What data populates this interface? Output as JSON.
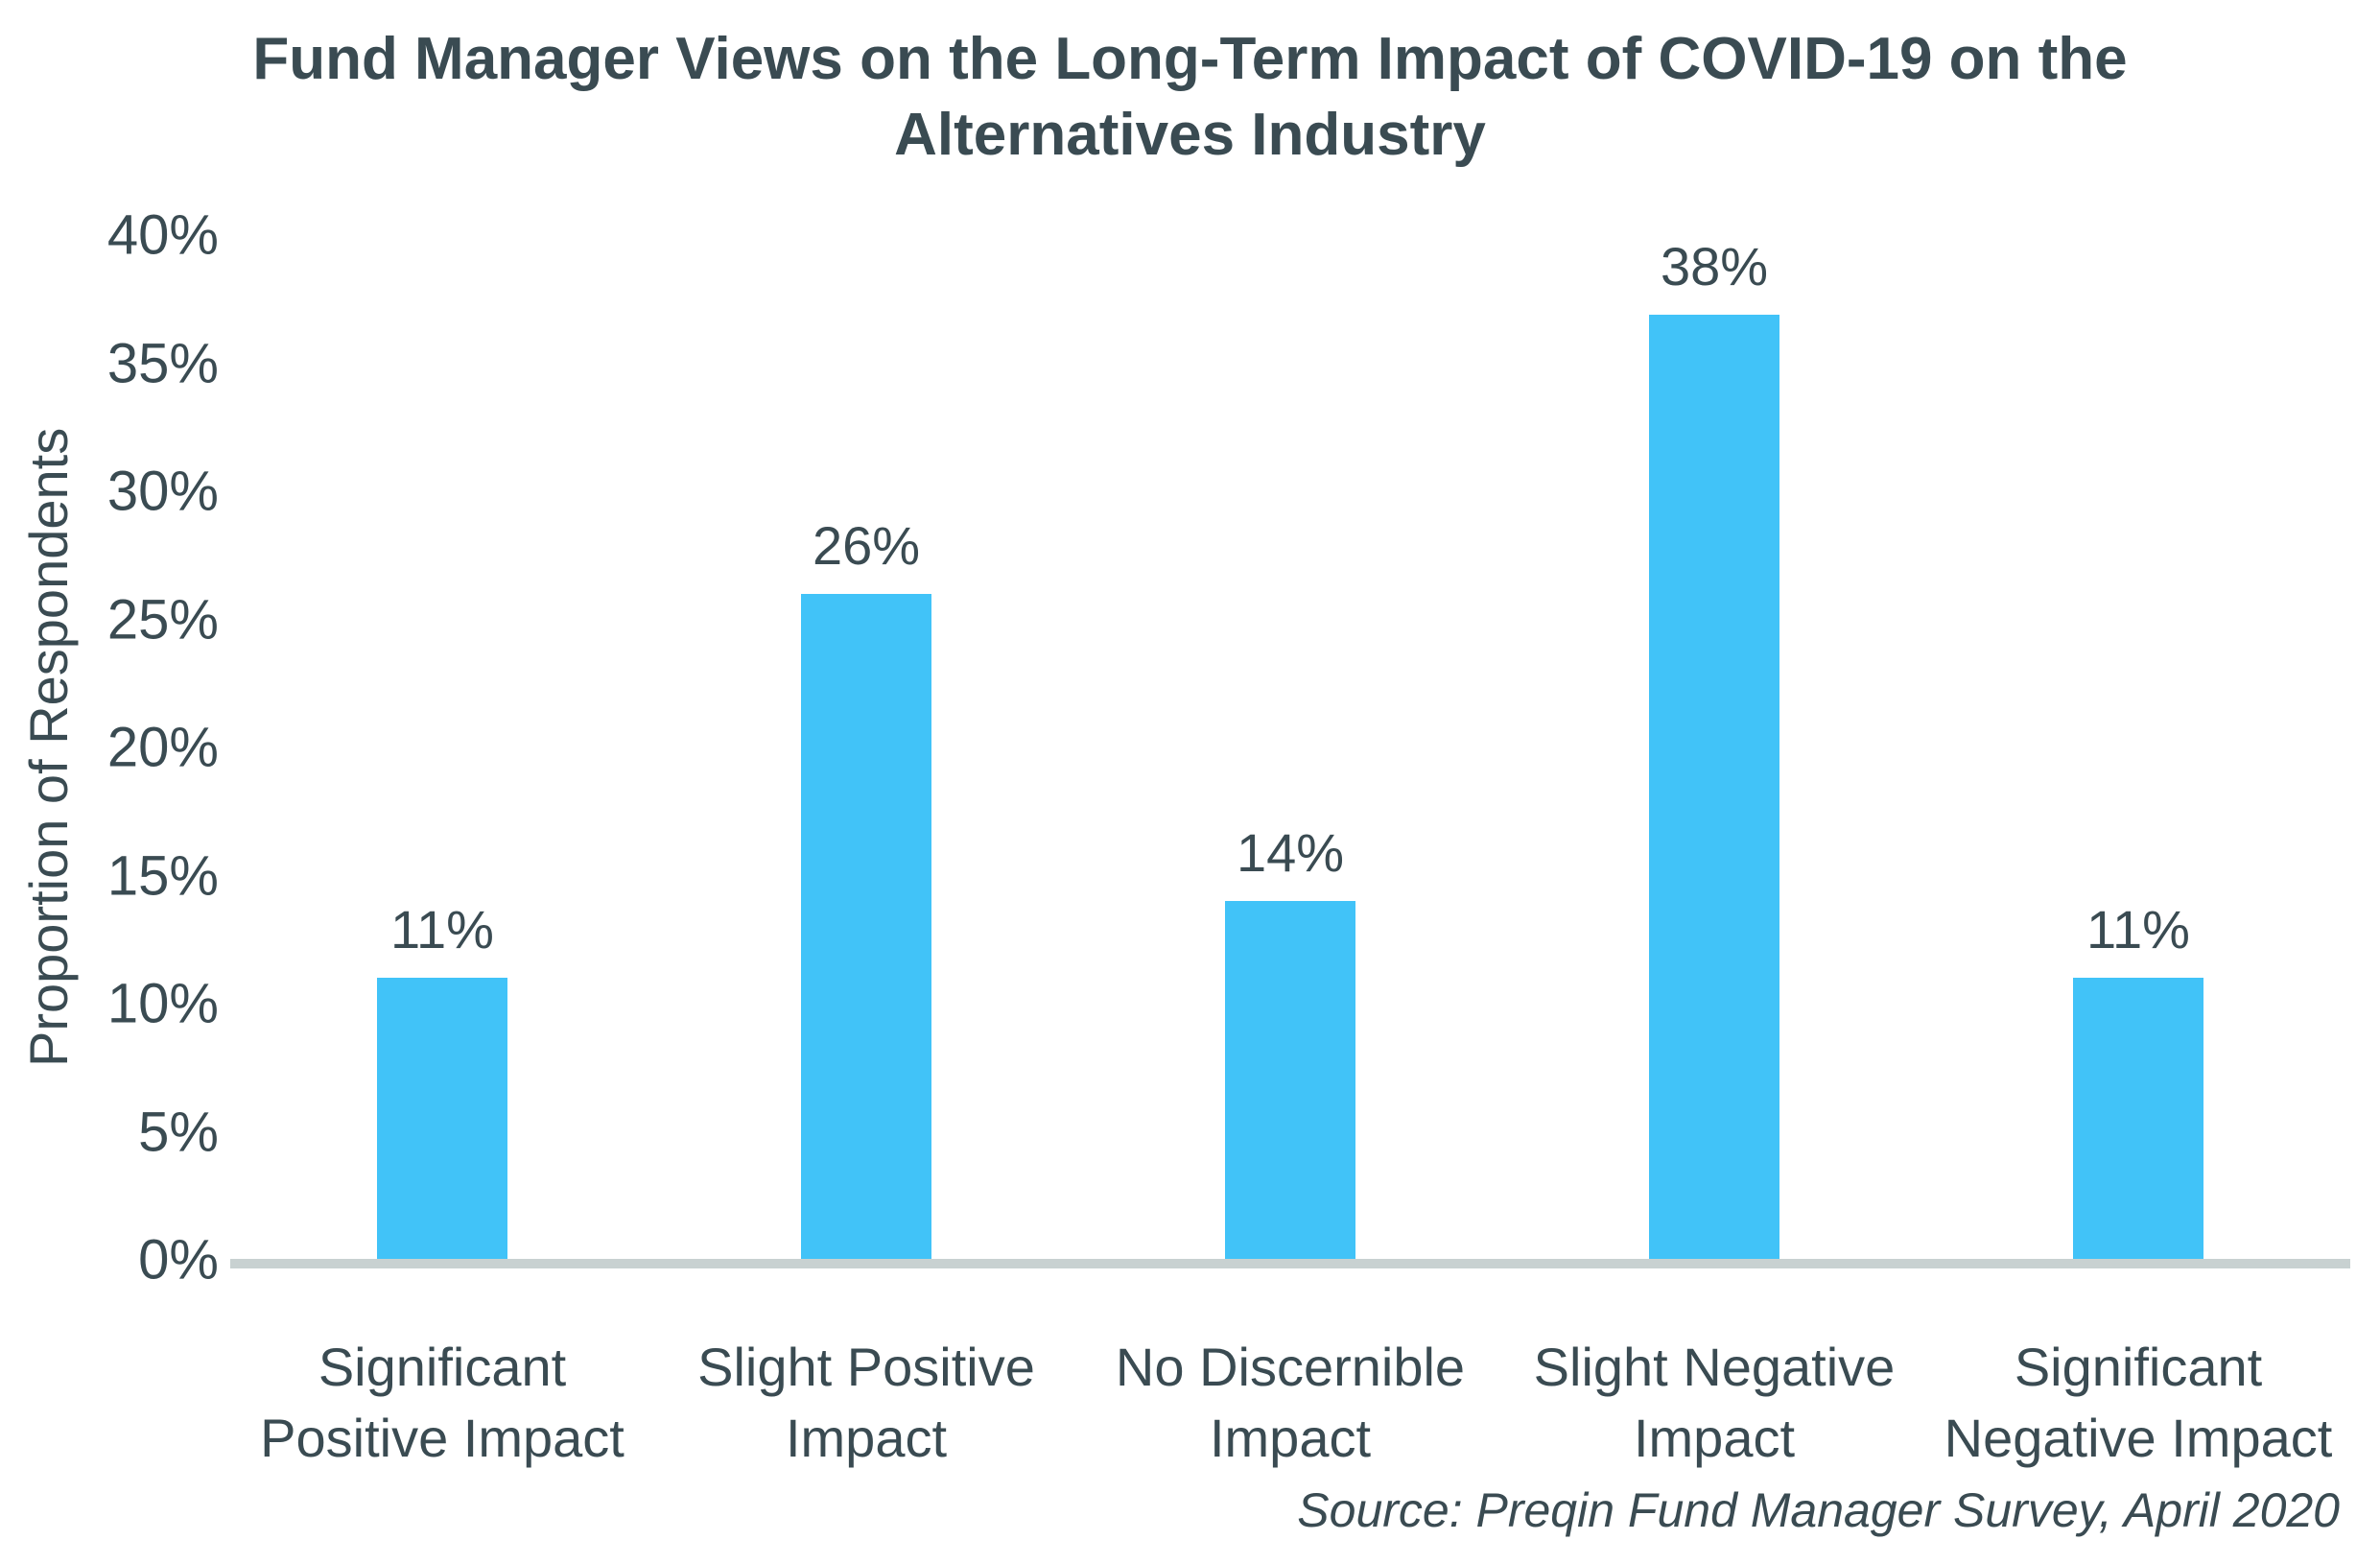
{
  "title": "Fund Manager Views on the Long-Term Impact of COVID-19 on the Alternatives Industry",
  "source": "Source: Preqin Fund Manager Survey, April 2020",
  "chart_data": {
    "type": "bar",
    "title": "Fund Manager Views on the Long-Term Impact of COVID-19 on the Alternatives Industry",
    "categories": [
      "Significant Positive Impact",
      "Slight Positive Impact",
      "No Discernible Impact",
      "Slight Negative Impact",
      "Significant Negative Impact"
    ],
    "categories_wrapped": [
      [
        "Significant",
        "Positive Impact"
      ],
      [
        "Slight Positive",
        "Impact"
      ],
      [
        "No Discernible",
        "Impact"
      ],
      [
        "Slight Negative",
        "Impact"
      ],
      [
        "Significant",
        "Negative Impact"
      ]
    ],
    "values": [
      11,
      26,
      14,
      38,
      11
    ],
    "data_labels": [
      "11%",
      "26%",
      "14%",
      "38%",
      "11%"
    ],
    "xlabel": "",
    "ylabel": "Proportion of Respondents",
    "ylim": [
      0,
      40
    ],
    "ytick_step": 5,
    "ytick_labels": [
      "0%",
      "5%",
      "10%",
      "15%",
      "20%",
      "25%",
      "30%",
      "35%",
      "40%"
    ],
    "grid": false,
    "legend": false,
    "annotations": [
      "Source: Preqin Fund Manager Survey, April 2020"
    ],
    "colors": {
      "bar": "#41C3F8",
      "text": "#3A4B52",
      "axis_line": "#C8D1D1",
      "background": "#FFFFFF"
    }
  }
}
